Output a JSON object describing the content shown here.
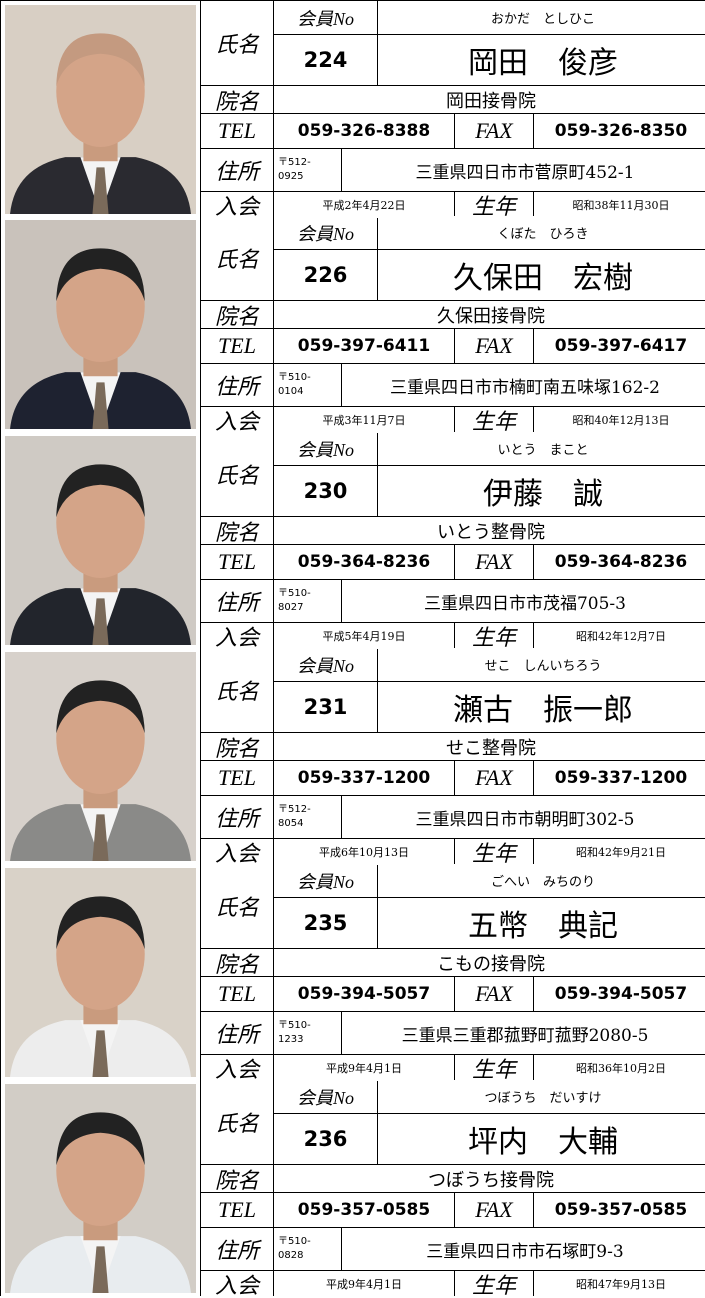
{
  "labels": {
    "name": "氏名",
    "member_no": "会員No",
    "clinic": "院名",
    "tel": "TEL",
    "fax": "FAX",
    "address": "住所",
    "joined": "入会",
    "born": "生年"
  },
  "members": [
    {
      "kana": "おかだ　としひこ",
      "no": "224",
      "name": "岡田　俊彦",
      "clinic": "岡田接骨院",
      "tel": "059-326-8388",
      "fax": "059-326-8350",
      "postal": [
        "〒512-",
        "0925"
      ],
      "address": "三重県四日市市菅原町452-1",
      "joined": "平成2年4月22日",
      "born": "昭和38年11月30日"
    },
    {
      "kana": "くぼた　ひろき",
      "no": "226",
      "name": "久保田　宏樹",
      "clinic": "久保田接骨院",
      "tel": "059-397-6411",
      "fax": "059-397-6417",
      "postal": [
        "〒510-",
        "0104"
      ],
      "address": "三重県四日市市楠町南五味塚162-2",
      "joined": "平成3年11月7日",
      "born": "昭和40年12月13日"
    },
    {
      "kana": "いとう　まこと",
      "no": "230",
      "name": "伊藤　誠",
      "clinic": "いとう整骨院",
      "tel": "059-364-8236",
      "fax": "059-364-8236",
      "postal": [
        "〒510-",
        "8027"
      ],
      "address": "三重県四日市市茂福705-3",
      "joined": "平成5年4月19日",
      "born": "昭和42年12月7日"
    },
    {
      "kana": "せこ　しんいちろう",
      "no": "231",
      "name": "瀬古　振一郎",
      "clinic": "せこ整骨院",
      "tel": "059-337-1200",
      "fax": "059-337-1200",
      "postal": [
        "〒512-",
        "8054"
      ],
      "address": "三重県四日市市朝明町302-5",
      "joined": "平成6年10月13日",
      "born": "昭和42年9月21日"
    },
    {
      "kana": "ごへい　みちのり",
      "no": "235",
      "name": "五幣　典記",
      "clinic": "こもの接骨院",
      "tel": "059-394-5057",
      "fax": "059-394-5057",
      "postal": [
        "〒510-",
        "1233"
      ],
      "address": "三重県三重郡菰野町菰野2080-5",
      "joined": "平成9年4月1日",
      "born": "昭和36年10月2日"
    },
    {
      "kana": "つぼうち　だいすけ",
      "no": "236",
      "name": "坪内　大輔",
      "clinic": "つぼうち接骨院",
      "tel": "059-357-0585",
      "fax": "059-357-0585",
      "postal": [
        "〒510-",
        "0828"
      ],
      "address": "三重県四日市市石塚町9-3",
      "joined": "平成9年4月1日",
      "born": "昭和47年9月13日"
    }
  ]
}
